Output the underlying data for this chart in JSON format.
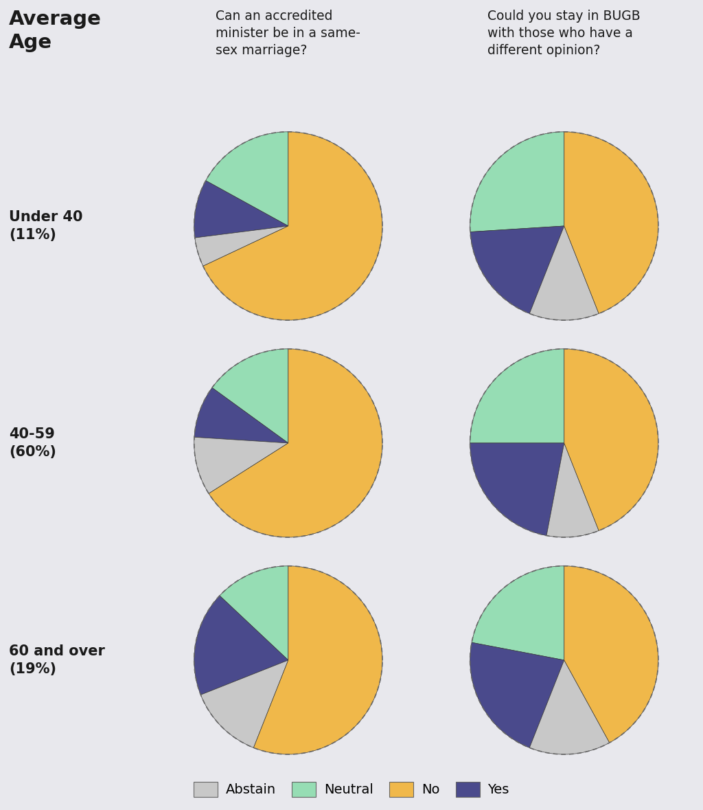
{
  "title": "Average\nAge",
  "col_headers": [
    "Can an accredited\nminister be in a same-\nsex marriage?",
    "Could you stay in BUGB\nwith those who have a\ndifferent opinion?"
  ],
  "row_labels": [
    "Under 40\n(11%)",
    "40-59\n(60%)",
    "60 and over\n(19%)"
  ],
  "colors": {
    "Abstain": "#c8c8c8",
    "Neutral": "#96ddb4",
    "No": "#f0b84a",
    "Yes": "#4a4a8c"
  },
  "legend_labels": [
    "Abstain",
    "Neutral",
    "No",
    "Yes"
  ],
  "pies": [
    [
      {
        "Neutral": 17,
        "Yes": 10,
        "Abstain": 5,
        "No": 68
      },
      {
        "Yes": 18,
        "Abstain": 12,
        "No": 44,
        "Neutral": 26
      }
    ],
    [
      {
        "Neutral": 15,
        "Yes": 9,
        "Abstain": 10,
        "No": 66
      },
      {
        "Yes": 22,
        "Abstain": 9,
        "No": 44,
        "Neutral": 25
      }
    ],
    [
      {
        "Neutral": 13,
        "Yes": 18,
        "Abstain": 13,
        "No": 56
      },
      {
        "Yes": 22,
        "Abstain": 14,
        "No": 42,
        "Neutral": 22
      }
    ]
  ],
  "background_color": "#e8e8ed",
  "cell_bg": "#f2f2f5",
  "start_angle": 90,
  "counterclock": true,
  "order": [
    "Neutral",
    "Yes",
    "Abstain",
    "No"
  ]
}
